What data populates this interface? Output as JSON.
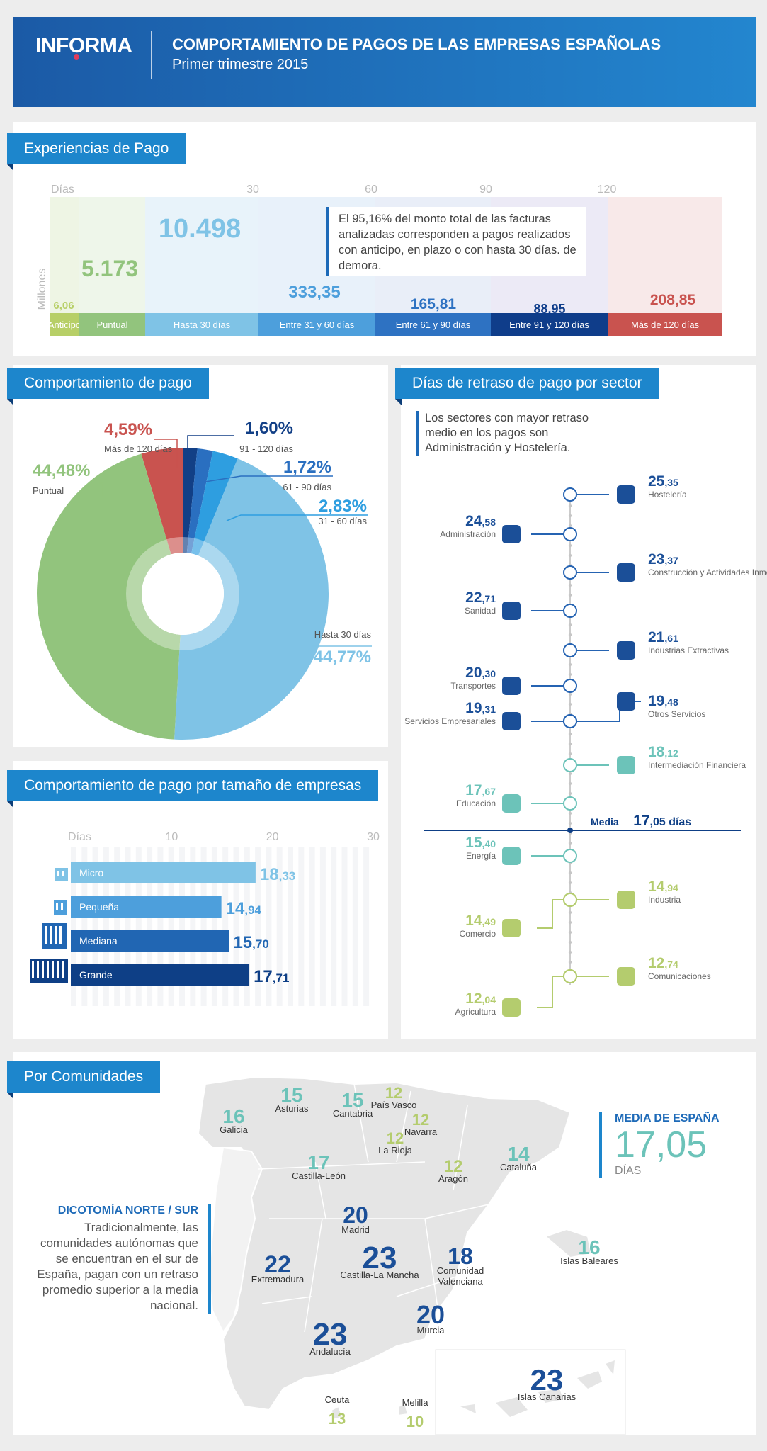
{
  "header": {
    "logo": "INFORMA",
    "title": "COMPORTAMIENTO DE PAGOS DE LAS EMPRESAS ESPAÑOLAS",
    "subtitle": "Primer trimestre 2015"
  },
  "colors": {
    "header_start": "#1b5aa6",
    "header_end": "#2386cf",
    "tag": "#1d86cc",
    "green": "#92c47d",
    "light_blue": "#7fc3e6",
    "mid_blue": "#3d93d6",
    "blue": "#2563b2",
    "navy": "#0e3f86",
    "red": "#c9534f",
    "olive": "#b4cc6e",
    "teal": "#6cc3b9"
  },
  "experiencias": {
    "tag": "Experiencias de Pago",
    "axis_label": "Días",
    "ylabel": "Millones",
    "note": "El 95,16% del monto total de las facturas analizadas corresponden a pagos realizados con anticipo, en plazo o con hasta 30 días. de demora."
  },
  "comportamiento": {
    "tag": "Comportamiento de pago",
    "center_label": ""
  },
  "tamano": {
    "tag": "Comportamiento de pago por tamaño de empresas",
    "axis_label": "Días"
  },
  "sectores": {
    "tag": "Días de retraso de pago por sector",
    "note": "Los sectores con mayor retraso medio en los  pagos son Administración y Hostelería.",
    "media_label": "Media",
    "media_int": "17",
    "media_dec": ",05 días"
  },
  "comunidades": {
    "tag": "Por Comunidades",
    "media_title": "MEDIA DE ESPAÑA",
    "media_value": "17,05",
    "media_unit": "DÍAS",
    "dicotomia_title": "DICOTOMÍA NORTE / SUR",
    "dicotomia_text": "Tradicionalmente, las comunidades autónomas que se encuentran en el sur de España, pagan con un retraso promedio superior a la media nacional."
  },
  "chart_data": [
    {
      "type": "bar",
      "title": "Experiencias de Pago",
      "xlabel": "Días",
      "ylabel": "Millones",
      "x_ticks": [
        "30",
        "60",
        "90",
        "120"
      ],
      "categories": [
        "Anticipo",
        "Puntual",
        "Hasta 30 días",
        "Entre 31 y 60 días",
        "Entre 61 y 90 días",
        "Entre 91 y 120 días",
        "Más de 120 días"
      ],
      "values": [
        6.06,
        5173,
        10498,
        333.35,
        165.81,
        88.95,
        208.85
      ],
      "value_labels": [
        "6,06",
        "5.173",
        "10.498",
        "333,35",
        "165,81",
        "88,95",
        "208,85"
      ],
      "colors": [
        "#b7cf67",
        "#92c47d",
        "#7fc3e6",
        "#4d9fdc",
        "#2e72c2",
        "#0f3d8a",
        "#c9534f"
      ]
    },
    {
      "type": "pie",
      "title": "Comportamiento de pago",
      "slices": [
        {
          "label": "Puntual",
          "value": 44.48,
          "text": "44,48%",
          "color": "#92c47d"
        },
        {
          "label": "Más de 120 días",
          "value": 4.59,
          "text": "4,59%",
          "color": "#c9534f"
        },
        {
          "label": "91 - 120 días",
          "value": 1.6,
          "text": "1,60%",
          "color": "#123f86"
        },
        {
          "label": "61 - 90 días",
          "value": 1.72,
          "text": "1,72%",
          "color": "#2a6fc0"
        },
        {
          "label": "31 - 60 días",
          "value": 2.83,
          "text": "2,83%",
          "color": "#2e9ee0"
        },
        {
          "label": "Hasta 30 días",
          "value": 44.77,
          "text": "44,77%",
          "color": "#7fc3e6"
        }
      ]
    },
    {
      "type": "bar",
      "title": "Comportamiento de pago por tamaño de empresas",
      "xlabel": "Días",
      "xlim": [
        0,
        30
      ],
      "x_ticks": [
        "10",
        "20",
        "30"
      ],
      "categories": [
        "Micro",
        "Pequeña",
        "Mediana",
        "Grande"
      ],
      "values": [
        18.33,
        14.94,
        15.7,
        17.71
      ],
      "int_labels": [
        "18",
        "14",
        "15",
        "17"
      ],
      "dec_labels": [
        ",33",
        ",94",
        ",70",
        ",71"
      ],
      "colors": [
        "#7fc3e6",
        "#4d9fdc",
        "#2166b3",
        "#0e3f86"
      ]
    },
    {
      "type": "scatter",
      "title": "Días de retraso de pago por sector",
      "points": [
        {
          "sector": "Hostelería",
          "value": 25.35,
          "int": "25",
          "dec": ",35",
          "side": "right"
        },
        {
          "sector": "Administración",
          "value": 24.58,
          "int": "24",
          "dec": ",58",
          "side": "left"
        },
        {
          "sector": "Construcción y Actividades Inmobiliarias",
          "value": 23.37,
          "int": "23",
          "dec": ",37",
          "side": "right"
        },
        {
          "sector": "Sanidad",
          "value": 22.71,
          "int": "22",
          "dec": ",71",
          "side": "left"
        },
        {
          "sector": "Industrias Extractivas",
          "value": 21.61,
          "int": "21",
          "dec": ",61",
          "side": "right"
        },
        {
          "sector": "Transportes",
          "value": 20.3,
          "int": "20",
          "dec": ",30",
          "side": "left"
        },
        {
          "sector": "Servicios Empresariales",
          "value": 19.31,
          "int": "19",
          "dec": ",31",
          "side": "left"
        },
        {
          "sector": "Otros Servicios",
          "value": 19.48,
          "int": "19",
          "dec": ",48",
          "side": "right"
        },
        {
          "sector": "Intermediación Financiera",
          "value": 18.12,
          "int": "18",
          "dec": ",12",
          "side": "right"
        },
        {
          "sector": "Educación",
          "value": 17.67,
          "int": "17",
          "dec": ",67",
          "side": "left"
        },
        {
          "sector": "Energía",
          "value": 15.4,
          "int": "15",
          "dec": ",40",
          "side": "left"
        },
        {
          "sector": "Industria",
          "value": 14.94,
          "int": "14",
          "dec": ",94",
          "side": "right"
        },
        {
          "sector": "Comercio",
          "value": 14.49,
          "int": "14",
          "dec": ",49",
          "side": "left"
        },
        {
          "sector": "Comunicaciones",
          "value": 12.74,
          "int": "12",
          "dec": ",74",
          "side": "right"
        },
        {
          "sector": "Agricultura",
          "value": 12.04,
          "int": "12",
          "dec": ",04",
          "side": "left"
        }
      ]
    },
    {
      "type": "table",
      "title": "Por Comunidades",
      "regions": [
        {
          "name": "Galicia",
          "value": "16"
        },
        {
          "name": "Asturias",
          "value": "15"
        },
        {
          "name": "Cantabria",
          "value": "15"
        },
        {
          "name": "País Vasco",
          "value": "12"
        },
        {
          "name": "Navarra",
          "value": "12"
        },
        {
          "name": "La Rioja",
          "value": "12"
        },
        {
          "name": "Aragón",
          "value": "12"
        },
        {
          "name": "Cataluña",
          "value": "14"
        },
        {
          "name": "Castilla-León",
          "value": "17"
        },
        {
          "name": "Madrid",
          "value": "20"
        },
        {
          "name": "Extremadura",
          "value": "22"
        },
        {
          "name": "Castilla-La Mancha",
          "value": "23"
        },
        {
          "name": "Comunidad Valenciana",
          "value": "18"
        },
        {
          "name": "Islas Baleares",
          "value": "16"
        },
        {
          "name": "Murcia",
          "value": "20"
        },
        {
          "name": "Andalucía",
          "value": "23"
        },
        {
          "name": "Islas Canarias",
          "value": "23"
        },
        {
          "name": "Ceuta",
          "value": "13"
        },
        {
          "name": "Melilla",
          "value": "10"
        }
      ]
    }
  ]
}
